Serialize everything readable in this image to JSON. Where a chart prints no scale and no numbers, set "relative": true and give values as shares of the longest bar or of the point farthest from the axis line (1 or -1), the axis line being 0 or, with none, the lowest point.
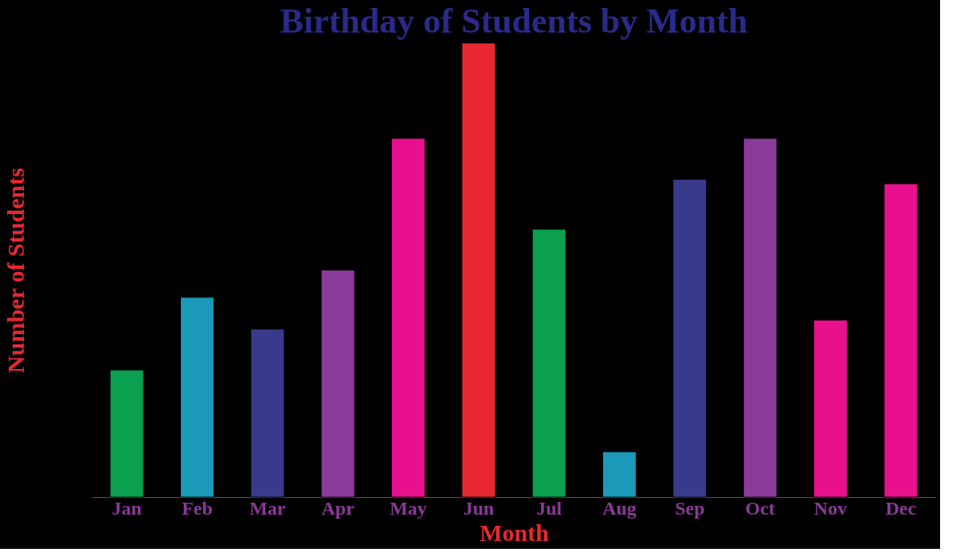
{
  "chart_data": {
    "type": "bar",
    "title": "Birthday of Students by Month",
    "xlabel": "Month",
    "ylabel": "Number of Students",
    "relative": true,
    "categories": [
      "Jan",
      "Feb",
      "Mar",
      "Apr",
      "May",
      "Jun",
      "Jul",
      "Aug",
      "Sep",
      "Oct",
      "Nov",
      "Dec"
    ],
    "values": [
      0.28,
      0.44,
      0.37,
      0.5,
      0.79,
      1,
      0.59,
      0.1,
      0.7,
      0.79,
      0.39,
      0.69
    ],
    "colors": [
      "#0aa050",
      "#1a9ab8",
      "#3a3a8c",
      "#8a3a98",
      "#e8108c",
      "#e82830",
      "#0aa050",
      "#1a9ab8",
      "#3a3a8c",
      "#8a3a98",
      "#e8108c",
      "#e8108c"
    ]
  }
}
